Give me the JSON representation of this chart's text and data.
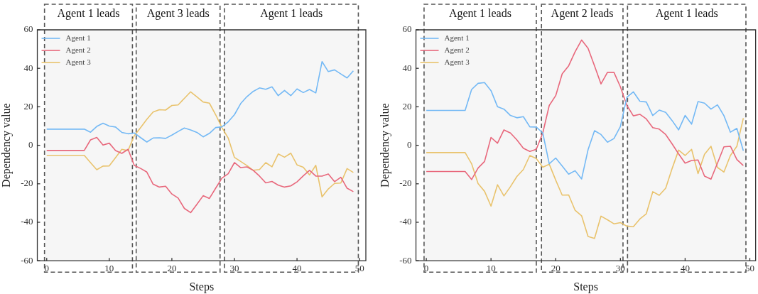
{
  "chart_data": [
    {
      "type": "line",
      "xlabel": "Steps",
      "ylabel": "Dependency value",
      "x": [
        0,
        1,
        2,
        3,
        4,
        5,
        6,
        7,
        8,
        9,
        10,
        11,
        12,
        13,
        14,
        15,
        16,
        17,
        18,
        19,
        20,
        21,
        22,
        23,
        24,
        25,
        26,
        27,
        28,
        29,
        30,
        31,
        32,
        33,
        34,
        35,
        36,
        37,
        38,
        39,
        40,
        41,
        42,
        43,
        44,
        45,
        46,
        47,
        48,
        49
      ],
      "xlim": [
        -1.5,
        51
      ],
      "xticks": [
        0,
        10,
        20,
        30,
        40,
        50
      ],
      "ylim": [
        -60,
        60
      ],
      "yticks": [
        -60,
        -40,
        -20,
        0,
        20,
        40,
        60
      ],
      "grid": false,
      "legend": "top left",
      "marker": "none",
      "line_style": "solid",
      "series": [
        {
          "name": "Agent 1",
          "color": "#74b9f5",
          "values": [
            8.4,
            8.4,
            8.4,
            8.4,
            8.4,
            8.4,
            8.4,
            6.8,
            9.8,
            11.5,
            10,
            9.5,
            6.7,
            6,
            6.4,
            4,
            1.7,
            3.8,
            3.9,
            3.6,
            5.3,
            7.2,
            9,
            8,
            6.7,
            4.4,
            6.2,
            9.2,
            9.6,
            12.2,
            15.9,
            21.7,
            25.3,
            28,
            29.8,
            29.1,
            30.4,
            25.8,
            28.5,
            25.8,
            29.3,
            27.4,
            29,
            27.2,
            43.5,
            38.3,
            39.2,
            37.1,
            35,
            38.7
          ]
        },
        {
          "name": "Agent 2",
          "color": "#e8687c",
          "values": [
            -2.7,
            -2.7,
            -2.7,
            -2.7,
            -2.7,
            -2.7,
            -2.7,
            2.8,
            4.1,
            0.1,
            1.1,
            -2.7,
            -4.2,
            -2.1,
            -10.5,
            -12,
            -13.9,
            -20.2,
            -21.7,
            -21.3,
            -25.3,
            -27.4,
            -32.8,
            -35,
            -30.7,
            -26.2,
            -27.6,
            -22.3,
            -17.1,
            -14.8,
            -9,
            -11.6,
            -11.2,
            -13,
            -16,
            -19.5,
            -18.8,
            -20.7,
            -21.7,
            -21.1,
            -19,
            -15.9,
            -13,
            -16,
            -16,
            -14.9,
            -18.9,
            -16.6,
            -22.3,
            -24.1
          ]
        },
        {
          "name": "Agent 3",
          "color": "#e9c36d",
          "values": [
            -5.2,
            -5.2,
            -5.2,
            -5.2,
            -5.2,
            -5.2,
            -5.2,
            -9,
            -12.7,
            -10.8,
            -10.7,
            -6.4,
            -2.1,
            -2.7,
            5,
            9.2,
            13.5,
            17.3,
            18.5,
            18.3,
            20.7,
            21,
            24.4,
            27.8,
            25.2,
            22.5,
            21.9,
            15.9,
            9.2,
            3.8,
            -6.3,
            -8.4,
            -10.5,
            -13,
            -12.6,
            -9,
            -11.2,
            -4.5,
            -6.2,
            -4.1,
            -10.2,
            -11.4,
            -15.4,
            -10.4,
            -26.8,
            -22.7,
            -19.8,
            -19.6,
            -12.1,
            -14.1
          ]
        }
      ],
      "bands": [
        {
          "axis": "x",
          "from": -0.35,
          "to": 13.7,
          "label": "Agent 1 leads",
          "color": "#555555"
        },
        {
          "axis": "x",
          "from": 14.3,
          "to": 27.7,
          "label": "Agent 3 leads",
          "color": "#555555"
        },
        {
          "axis": "x",
          "from": 28.4,
          "to": 49.8,
          "label": "Agent 1 leads",
          "color": "#555555"
        }
      ]
    },
    {
      "type": "line",
      "xlabel": "Steps",
      "ylabel": "Dependency value",
      "x": [
        0,
        1,
        2,
        3,
        4,
        5,
        6,
        7,
        8,
        9,
        10,
        11,
        12,
        13,
        14,
        15,
        16,
        17,
        18,
        19,
        20,
        21,
        22,
        23,
        24,
        25,
        26,
        27,
        28,
        29,
        30,
        31,
        32,
        33,
        34,
        35,
        36,
        37,
        38,
        39,
        40,
        41,
        42,
        43,
        44,
        45,
        46,
        47,
        48,
        49
      ],
      "xlim": [
        -1.6,
        50.9
      ],
      "xticks": [
        0,
        10,
        20,
        30,
        40,
        50
      ],
      "ylim": [
        -60,
        60
      ],
      "yticks": [
        -60,
        -40,
        -20,
        0,
        20,
        40,
        60
      ],
      "grid": false,
      "legend": "top left",
      "marker": "none",
      "line_style": "solid",
      "series": [
        {
          "name": "Agent 1",
          "color": "#74b9f5",
          "values": [
            18.1,
            18.1,
            18.1,
            18.1,
            18.1,
            18.1,
            18.1,
            29,
            32.2,
            32.6,
            28.4,
            20.1,
            18.8,
            15.5,
            14.3,
            14.9,
            9.6,
            9.5,
            6.4,
            -9.6,
            -6.6,
            -10.8,
            -15,
            -13.2,
            -17.5,
            -2.3,
            7.6,
            5.6,
            1.6,
            3.5,
            9.8,
            25,
            27.8,
            22.9,
            22.5,
            15.5,
            18.3,
            17.1,
            12.8,
            8,
            15.5,
            11,
            22.7,
            21.9,
            18.8,
            21,
            15.4,
            6.8,
            8.8,
            -2.8
          ]
        },
        {
          "name": "Agent 2",
          "color": "#e8687c",
          "values": [
            -13.6,
            -13.6,
            -13.6,
            -13.6,
            -13.6,
            -13.6,
            -13.6,
            -17.8,
            -11.8,
            -8.4,
            4.1,
            1.1,
            8,
            6.4,
            2.8,
            -1.5,
            -3.2,
            -2.1,
            6.4,
            20.7,
            25.8,
            37.1,
            41.3,
            48.6,
            54.7,
            50.4,
            41.3,
            31.9,
            37.9,
            37.9,
            30.4,
            20.7,
            15.3,
            16.1,
            13.7,
            9.2,
            8.4,
            5.6,
            0.7,
            -4.5,
            -9.3,
            -7.9,
            -7.6,
            -16,
            -17.6,
            -9.3,
            -0.8,
            -0.5,
            -7.4,
            -10.5
          ]
        },
        {
          "name": "Agent 3",
          "color": "#e9c36d",
          "values": [
            -3.8,
            -3.8,
            -3.8,
            -3.8,
            -3.8,
            -3.8,
            -3.8,
            -9.6,
            -19.9,
            -23.9,
            -31.6,
            -20.5,
            -26.3,
            -21.5,
            -16.2,
            -12.6,
            -5.3,
            -6.9,
            -11.4,
            -9.8,
            -18.1,
            -25.9,
            -25.8,
            -33.8,
            -36.6,
            -47.4,
            -48.4,
            -36.8,
            -38.7,
            -40.8,
            -40.2,
            -42,
            -42.3,
            -38.3,
            -35.6,
            -24.1,
            -26,
            -22.3,
            -12,
            -2.5,
            -5.3,
            -2.1,
            -14.7,
            -4.7,
            -0.5,
            -11.5,
            -13.9,
            -5.3,
            -0.5,
            14.1
          ]
        }
      ],
      "bands": [
        {
          "axis": "x",
          "from": -0.35,
          "to": 17,
          "label": "Agent 1 leads",
          "color": "#555555"
        },
        {
          "axis": "x",
          "from": 17.8,
          "to": 30.4,
          "label": "Agent 2 leads",
          "color": "#555555"
        },
        {
          "axis": "x",
          "from": 31.1,
          "to": 49.4,
          "label": "Agent 1 leads",
          "color": "#555555"
        }
      ]
    }
  ]
}
